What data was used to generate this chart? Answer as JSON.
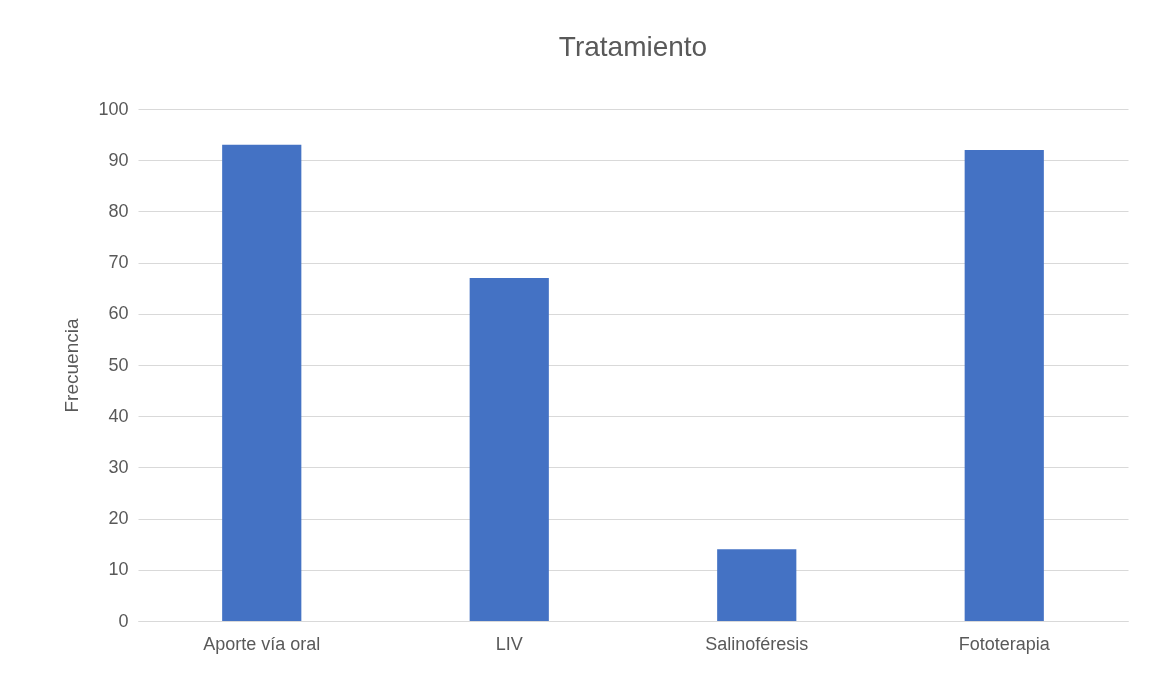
{
  "chart_data": {
    "type": "bar",
    "title": "Tratamiento",
    "ylabel": "Frecuencia",
    "categories": [
      "Aporte vía oral",
      "LIV",
      "Salinoféresis",
      "Fototerapia"
    ],
    "values": [
      93,
      67,
      14,
      92
    ],
    "color": "#4472c4",
    "ylim": [
      0,
      100
    ],
    "yticks": [
      0,
      10,
      20,
      30,
      40,
      50,
      60,
      70,
      80,
      90,
      100
    ],
    "grid": "y"
  }
}
